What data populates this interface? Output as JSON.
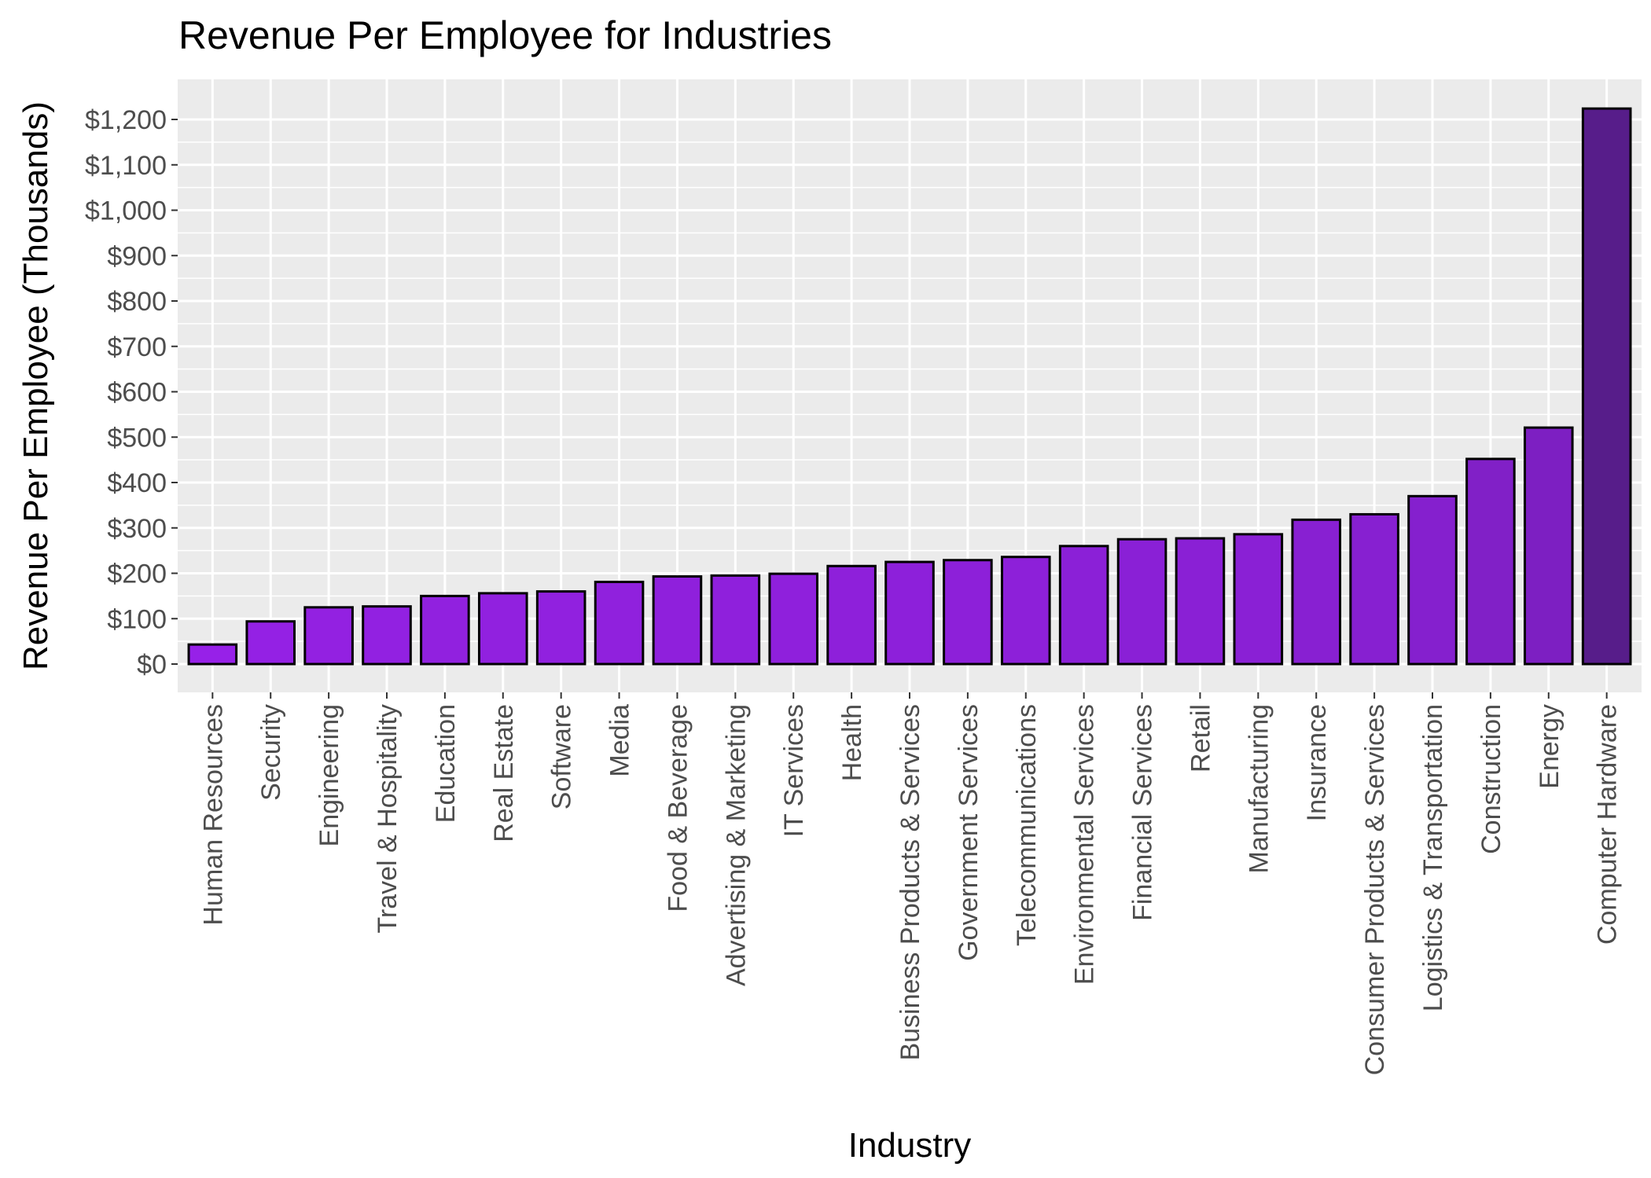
{
  "chart_data": {
    "type": "bar",
    "title": "Revenue Per Employee for Industries",
    "xlabel": "Industry",
    "ylabel": "Revenue Per Employee (Thousands)",
    "ylim": [
      -45,
      1290
    ],
    "yticks": [
      0,
      100,
      200,
      300,
      400,
      500,
      600,
      700,
      800,
      900,
      1000,
      1100,
      1200
    ],
    "ytick_labels": [
      "$0",
      "$100",
      "$200",
      "$300",
      "$400",
      "$500",
      "$600",
      "$700",
      "$800",
      "$900",
      "$1,000",
      "$1,100",
      "$1,200"
    ],
    "categories": [
      "Human Resources",
      "Security",
      "Engineering",
      "Travel & Hospitality",
      "Education",
      "Real Estate",
      "Software",
      "Media",
      "Food & Beverage",
      "Advertising & Marketing",
      "IT Services",
      "Health",
      "Business Products & Services",
      "Government Services",
      "Telecommunications",
      "Environmental Services",
      "Financial Services",
      "Retail",
      "Manufacturing",
      "Insurance",
      "Consumer Products & Services",
      "Logistics & Transportation",
      "Construction",
      "Energy",
      "Computer Hardware"
    ],
    "values": [
      43,
      94,
      125,
      127,
      150,
      156,
      160,
      181,
      193,
      195,
      199,
      216,
      225,
      229,
      236,
      260,
      275,
      277,
      286,
      318,
      330,
      370,
      452,
      521,
      1224
    ],
    "grid": true,
    "legend": "none",
    "colors": {
      "panel_background": "#ebebeb",
      "grid": "#ffffff",
      "bar_outline": "#000000",
      "bar_low": "#9721e8",
      "bar_high": "#571d8a"
    }
  }
}
